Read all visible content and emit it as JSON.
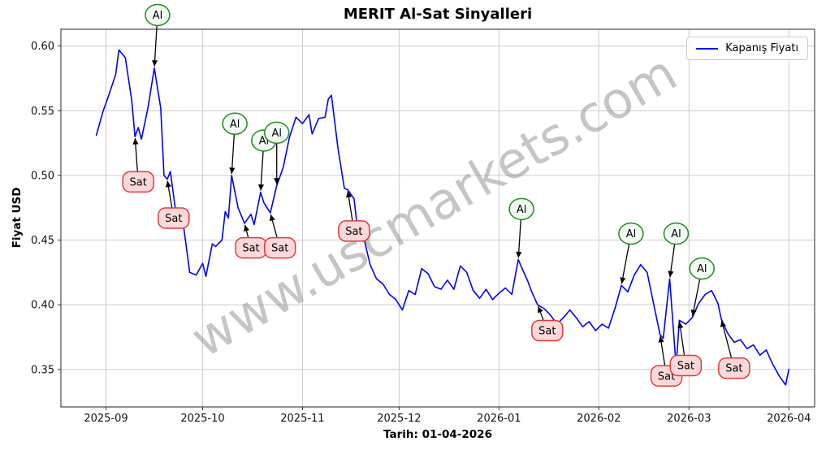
{
  "watermark": {
    "text": "www.uscmarkets.com",
    "color": "#8c8c8c",
    "opacity": 0.5
  },
  "chart_data": {
    "type": "line",
    "title": "MERIT Al-Sat Sinyalleri",
    "ylabel": "Fiyat USD",
    "xlabel": "Tarih: 01-04-2026",
    "legend": "Kapanış Fiyatı",
    "line_color": "#0000ff",
    "grid": true,
    "legend_position": "upper right",
    "ylim": [
      0.321,
      0.613
    ],
    "x_domain": [
      "2025-08-18",
      "2026-04-09"
    ],
    "yticks": [
      0.35,
      0.4,
      0.45,
      0.5,
      0.55,
      0.6
    ],
    "ytick_labels": [
      "0.35",
      "0.40",
      "0.45",
      "0.50",
      "0.55",
      "0.60"
    ],
    "xticks": [
      "2025-09-01",
      "2025-10-01",
      "2025-11-01",
      "2025-12-01",
      "2026-01-01",
      "2026-02-01",
      "2026-03-01",
      "2026-04-01"
    ],
    "xtick_labels": [
      "2025-09",
      "2025-10",
      "2025-11",
      "2025-12",
      "2026-01",
      "2026-02",
      "2026-03",
      "2026-04"
    ],
    "series": [
      {
        "name": "Kapanış Fiyatı",
        "points": [
          [
            "2025-08-29",
            0.531
          ],
          [
            "2025-08-31",
            0.549
          ],
          [
            "2025-09-02",
            0.563
          ],
          [
            "2025-09-04",
            0.578
          ],
          [
            "2025-09-05",
            0.597
          ],
          [
            "2025-09-07",
            0.591
          ],
          [
            "2025-09-09",
            0.558
          ],
          [
            "2025-09-10",
            0.53
          ],
          [
            "2025-09-11",
            0.537
          ],
          [
            "2025-09-12",
            0.528
          ],
          [
            "2025-09-14",
            0.552
          ],
          [
            "2025-09-16",
            0.583
          ],
          [
            "2025-09-18",
            0.552
          ],
          [
            "2025-09-19",
            0.5
          ],
          [
            "2025-09-20",
            0.497
          ],
          [
            "2025-09-21",
            0.503
          ],
          [
            "2025-09-23",
            0.465
          ],
          [
            "2025-09-25",
            0.462
          ],
          [
            "2025-09-27",
            0.425
          ],
          [
            "2025-09-29",
            0.423
          ],
          [
            "2025-10-01",
            0.432
          ],
          [
            "2025-10-02",
            0.422
          ],
          [
            "2025-10-04",
            0.447
          ],
          [
            "2025-10-05",
            0.445
          ],
          [
            "2025-10-07",
            0.45
          ],
          [
            "2025-10-08",
            0.472
          ],
          [
            "2025-10-09",
            0.467
          ],
          [
            "2025-10-10",
            0.5
          ],
          [
            "2025-10-12",
            0.475
          ],
          [
            "2025-10-14",
            0.463
          ],
          [
            "2025-10-16",
            0.47
          ],
          [
            "2025-10-17",
            0.462
          ],
          [
            "2025-10-19",
            0.487
          ],
          [
            "2025-10-20",
            0.479
          ],
          [
            "2025-10-22",
            0.471
          ],
          [
            "2025-10-24",
            0.492
          ],
          [
            "2025-10-26",
            0.506
          ],
          [
            "2025-10-28",
            0.53
          ],
          [
            "2025-10-30",
            0.545
          ],
          [
            "2025-11-01",
            0.54
          ],
          [
            "2025-11-03",
            0.547
          ],
          [
            "2025-11-04",
            0.532
          ],
          [
            "2025-11-06",
            0.544
          ],
          [
            "2025-11-08",
            0.545
          ],
          [
            "2025-11-09",
            0.559
          ],
          [
            "2025-11-10",
            0.562
          ],
          [
            "2025-11-12",
            0.521
          ],
          [
            "2025-11-14",
            0.49
          ],
          [
            "2025-11-15",
            0.489
          ],
          [
            "2025-11-17",
            0.482
          ],
          [
            "2025-11-18",
            0.46
          ],
          [
            "2025-11-20",
            0.452
          ],
          [
            "2025-11-22",
            0.431
          ],
          [
            "2025-11-24",
            0.42
          ],
          [
            "2025-11-26",
            0.416
          ],
          [
            "2025-11-28",
            0.408
          ],
          [
            "2025-11-30",
            0.404
          ],
          [
            "2025-12-02",
            0.396
          ],
          [
            "2025-12-04",
            0.411
          ],
          [
            "2025-12-06",
            0.408
          ],
          [
            "2025-12-08",
            0.428
          ],
          [
            "2025-12-10",
            0.424
          ],
          [
            "2025-12-12",
            0.414
          ],
          [
            "2025-12-14",
            0.412
          ],
          [
            "2025-12-16",
            0.419
          ],
          [
            "2025-12-18",
            0.412
          ],
          [
            "2025-12-20",
            0.43
          ],
          [
            "2025-12-22",
            0.425
          ],
          [
            "2025-12-24",
            0.411
          ],
          [
            "2025-12-26",
            0.405
          ],
          [
            "2025-12-28",
            0.412
          ],
          [
            "2025-12-30",
            0.404
          ],
          [
            "2026-01-01",
            0.409
          ],
          [
            "2026-01-03",
            0.413
          ],
          [
            "2026-01-05",
            0.408
          ],
          [
            "2026-01-07",
            0.435
          ],
          [
            "2026-01-08",
            0.429
          ],
          [
            "2026-01-10",
            0.418
          ],
          [
            "2026-01-11",
            0.411
          ],
          [
            "2026-01-13",
            0.4
          ],
          [
            "2026-01-15",
            0.397
          ],
          [
            "2026-01-17",
            0.392
          ],
          [
            "2026-01-19",
            0.385
          ],
          [
            "2026-01-21",
            0.39
          ],
          [
            "2026-01-23",
            0.396
          ],
          [
            "2026-01-25",
            0.39
          ],
          [
            "2026-01-27",
            0.383
          ],
          [
            "2026-01-29",
            0.387
          ],
          [
            "2026-01-31",
            0.38
          ],
          [
            "2026-02-02",
            0.385
          ],
          [
            "2026-02-04",
            0.382
          ],
          [
            "2026-02-06",
            0.397
          ],
          [
            "2026-02-08",
            0.415
          ],
          [
            "2026-02-10",
            0.41
          ],
          [
            "2026-02-12",
            0.423
          ],
          [
            "2026-02-14",
            0.431
          ],
          [
            "2026-02-16",
            0.425
          ],
          [
            "2026-02-18",
            0.401
          ],
          [
            "2026-02-20",
            0.377
          ],
          [
            "2026-02-21",
            0.374
          ],
          [
            "2026-02-23",
            0.42
          ],
          [
            "2026-02-25",
            0.352
          ],
          [
            "2026-02-26",
            0.388
          ],
          [
            "2026-02-28",
            0.385
          ],
          [
            "2026-03-02",
            0.39
          ],
          [
            "2026-03-04",
            0.401
          ],
          [
            "2026-03-06",
            0.408
          ],
          [
            "2026-03-08",
            0.411
          ],
          [
            "2026-03-10",
            0.401
          ],
          [
            "2026-03-11",
            0.389
          ],
          [
            "2026-03-13",
            0.378
          ],
          [
            "2026-03-15",
            0.371
          ],
          [
            "2026-03-17",
            0.373
          ],
          [
            "2026-03-19",
            0.366
          ],
          [
            "2026-03-21",
            0.369
          ],
          [
            "2026-03-23",
            0.361
          ],
          [
            "2026-03-25",
            0.365
          ],
          [
            "2026-03-27",
            0.354
          ],
          [
            "2026-03-29",
            0.345
          ],
          [
            "2026-03-31",
            0.338
          ],
          [
            "2026-04-01",
            0.35
          ]
        ]
      }
    ],
    "signals": [
      {
        "type": "Al",
        "date": "2025-09-16",
        "price": 0.583,
        "label_date": "2025-09-17",
        "label_price": 0.624
      },
      {
        "type": "Al",
        "date": "2025-10-10",
        "price": 0.5,
        "label_date": "2025-10-11",
        "label_price": 0.54
      },
      {
        "type": "Al",
        "date": "2025-10-19",
        "price": 0.487,
        "label_date": "2025-10-20",
        "label_price": 0.527
      },
      {
        "type": "Al",
        "date": "2025-10-24",
        "price": 0.492,
        "label_date": "2025-10-24",
        "label_price": 0.533
      },
      {
        "type": "Al",
        "date": "2026-01-07",
        "price": 0.435,
        "label_date": "2026-01-08",
        "label_price": 0.474
      },
      {
        "type": "Al",
        "date": "2026-02-08",
        "price": 0.415,
        "label_date": "2026-02-11",
        "label_price": 0.455
      },
      {
        "type": "Al",
        "date": "2026-02-23",
        "price": 0.42,
        "label_date": "2026-02-25",
        "label_price": 0.455
      },
      {
        "type": "Al",
        "date": "2026-03-02",
        "price": 0.39,
        "label_date": "2026-03-05",
        "label_price": 0.428
      },
      {
        "type": "Sat",
        "date": "2025-09-10",
        "price": 0.53,
        "label_date": "2025-09-11",
        "label_price": 0.495
      },
      {
        "type": "Sat",
        "date": "2025-09-20",
        "price": 0.497,
        "label_date": "2025-09-22",
        "label_price": 0.467
      },
      {
        "type": "Sat",
        "date": "2025-10-14",
        "price": 0.463,
        "label_date": "2025-10-16",
        "label_price": 0.444
      },
      {
        "type": "Sat",
        "date": "2025-10-22",
        "price": 0.471,
        "label_date": "2025-10-25",
        "label_price": 0.444
      },
      {
        "type": "Sat",
        "date": "2025-11-15",
        "price": 0.489,
        "label_date": "2025-11-17",
        "label_price": 0.457
      },
      {
        "type": "Sat",
        "date": "2026-01-13",
        "price": 0.4,
        "label_date": "2026-01-16",
        "label_price": 0.38
      },
      {
        "type": "Sat",
        "date": "2026-02-20",
        "price": 0.377,
        "label_date": "2026-02-22",
        "label_price": 0.345
      },
      {
        "type": "Sat",
        "date": "2026-02-26",
        "price": 0.388,
        "label_date": "2026-02-28",
        "label_price": 0.353
      },
      {
        "type": "Sat",
        "date": "2026-03-11",
        "price": 0.389,
        "label_date": "2026-03-15",
        "label_price": 0.351
      }
    ],
    "signal_styles": {
      "Al": {
        "fill": "#f4fbf4",
        "stroke": "#1e8c1e"
      },
      "Sat": {
        "fill": "#ffd9d9",
        "stroke": "#e03a3a"
      }
    }
  }
}
